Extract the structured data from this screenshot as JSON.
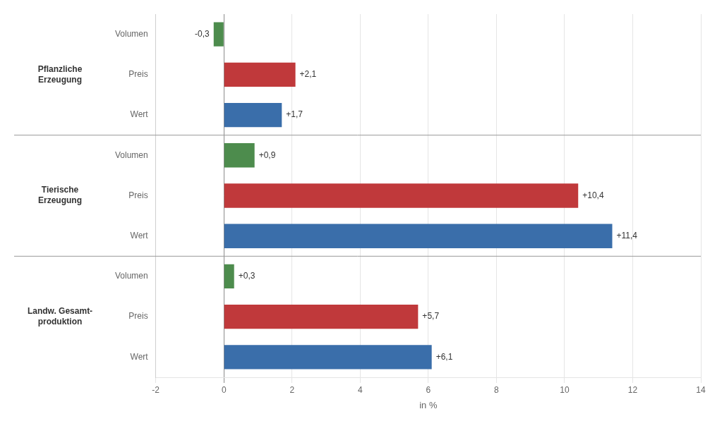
{
  "chart_data": {
    "type": "bar",
    "orientation": "horizontal",
    "categories": [
      "Volumen",
      "Preis",
      "Wert",
      "Volumen",
      "Preis",
      "Wert",
      "Volumen",
      "Preis",
      "Wert"
    ],
    "values": [
      -0.3,
      2.1,
      1.7,
      0.9,
      10.4,
      11.4,
      0.3,
      5.7,
      6.1
    ],
    "value_labels": [
      "-0,3",
      "+2,1",
      "+1,7",
      "+0,9",
      "+10,4",
      "+11,4",
      "+0,3",
      "+5,7",
      "+6,1"
    ],
    "data_labels": true,
    "colors": [
      "#4d8c4d",
      "#c0393b",
      "#3a6eaa",
      "#4d8c4d",
      "#c0393b",
      "#3a6eaa",
      "#4d8c4d",
      "#c0393b",
      "#3a6eaa"
    ],
    "annotations": [
      "Pflanzliche\nErzeugung",
      "Tierische\nErzeugung",
      "Landw. Gesamt-\nproduktion"
    ],
    "xlabel": "in %",
    "xlim": [
      -2,
      14
    ],
    "xticks": [
      -2,
      0,
      2,
      4,
      6,
      8,
      10,
      12,
      14
    ],
    "grid": true
  }
}
